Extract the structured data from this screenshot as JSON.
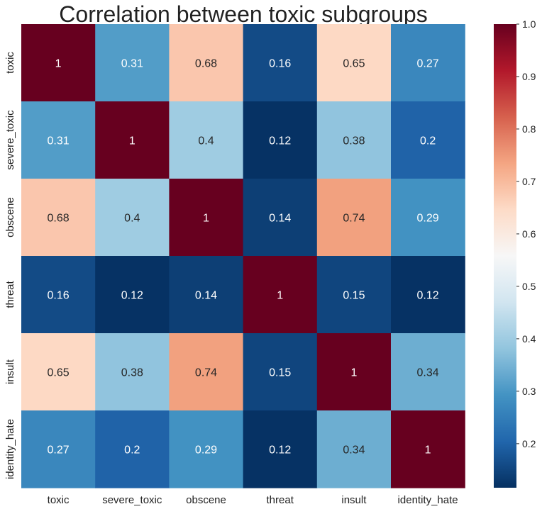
{
  "chart_data": {
    "type": "heatmap",
    "title": "Correlation between toxic subgroups",
    "x_labels": [
      "toxic",
      "severe_toxic",
      "obscene",
      "threat",
      "insult",
      "identity_hate"
    ],
    "y_labels": [
      "toxic",
      "severe_toxic",
      "obscene",
      "threat",
      "insult",
      "identity_hate"
    ],
    "values": [
      [
        1,
        0.31,
        0.68,
        0.16,
        0.65,
        0.27
      ],
      [
        0.31,
        1,
        0.4,
        0.12,
        0.38,
        0.2
      ],
      [
        0.68,
        0.4,
        1,
        0.14,
        0.74,
        0.29
      ],
      [
        0.16,
        0.12,
        0.14,
        1,
        0.15,
        0.12
      ],
      [
        0.65,
        0.38,
        0.74,
        0.15,
        1,
        0.34
      ],
      [
        0.27,
        0.2,
        0.29,
        0.12,
        0.34,
        1
      ]
    ],
    "colormap": "RdBu_r",
    "colorbar": {
      "range": [
        0.116,
        1.0
      ],
      "ticks": [
        0.2,
        0.3,
        0.4,
        0.5,
        0.6,
        0.7,
        0.8,
        0.9,
        1.0
      ],
      "tick_labels": [
        "0.2",
        "0.3",
        "0.4",
        "0.5",
        "0.6",
        "0.7",
        "0.8",
        "0.9",
        "1.0"
      ]
    },
    "annotations": true,
    "grid": false
  }
}
